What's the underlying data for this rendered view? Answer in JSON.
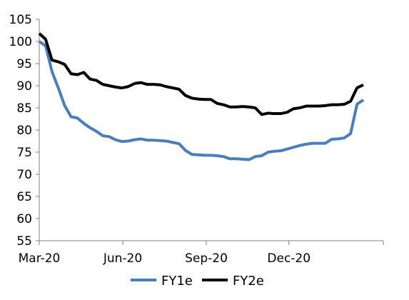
{
  "chart_data": {
    "type": "line",
    "title": "",
    "xlabel": "",
    "ylabel": "",
    "ylim": [
      55,
      105
    ],
    "yticks": [
      55,
      60,
      65,
      70,
      75,
      80,
      85,
      90,
      95,
      100,
      105
    ],
    "xlim": [
      "2020-03-01",
      "2021-03-15"
    ],
    "xticks": [
      {
        "label": "Mar-20",
        "date": "2020-03-01"
      },
      {
        "label": "Jun-20",
        "date": "2020-06-01"
      },
      {
        "label": "Sep-20",
        "date": "2020-09-01"
      },
      {
        "label": "Dec-20",
        "date": "2020-12-01"
      }
    ],
    "grid": false,
    "legend_position": "bottom",
    "series": [
      {
        "name": "FY1e",
        "color": "#4a7ebb",
        "points": [
          [
            "2020-03-01",
            100.0
          ],
          [
            "2020-03-08",
            99.0
          ],
          [
            "2020-03-15",
            93.2
          ],
          [
            "2020-03-22",
            89.5
          ],
          [
            "2020-03-29",
            85.5
          ],
          [
            "2020-04-05",
            83.0
          ],
          [
            "2020-04-12",
            82.7
          ],
          [
            "2020-04-19",
            81.5
          ],
          [
            "2020-04-26",
            80.5
          ],
          [
            "2020-05-03",
            79.7
          ],
          [
            "2020-05-10",
            78.7
          ],
          [
            "2020-05-17",
            78.5
          ],
          [
            "2020-05-24",
            77.8
          ],
          [
            "2020-05-31",
            77.4
          ],
          [
            "2020-06-07",
            77.5
          ],
          [
            "2020-06-14",
            77.8
          ],
          [
            "2020-06-21",
            78.0
          ],
          [
            "2020-06-28",
            77.7
          ],
          [
            "2020-07-05",
            77.7
          ],
          [
            "2020-07-12",
            77.6
          ],
          [
            "2020-07-19",
            77.5
          ],
          [
            "2020-07-26",
            77.2
          ],
          [
            "2020-08-02",
            76.9
          ],
          [
            "2020-08-09",
            75.4
          ],
          [
            "2020-08-16",
            74.5
          ],
          [
            "2020-08-23",
            74.4
          ],
          [
            "2020-08-30",
            74.3
          ],
          [
            "2020-09-06",
            74.3
          ],
          [
            "2020-09-13",
            74.2
          ],
          [
            "2020-09-20",
            74.0
          ],
          [
            "2020-09-27",
            73.5
          ],
          [
            "2020-10-04",
            73.5
          ],
          [
            "2020-10-11",
            73.4
          ],
          [
            "2020-10-18",
            73.3
          ],
          [
            "2020-10-25",
            74.0
          ],
          [
            "2020-11-01",
            74.2
          ],
          [
            "2020-11-08",
            75.0
          ],
          [
            "2020-11-15",
            75.2
          ],
          [
            "2020-11-22",
            75.3
          ],
          [
            "2020-11-29",
            75.7
          ],
          [
            "2020-12-06",
            76.1
          ],
          [
            "2020-12-13",
            76.5
          ],
          [
            "2020-12-20",
            76.8
          ],
          [
            "2020-12-27",
            77.0
          ],
          [
            "2021-01-03",
            77.0
          ],
          [
            "2021-01-10",
            77.0
          ],
          [
            "2021-01-17",
            77.9
          ],
          [
            "2021-01-24",
            78.0
          ],
          [
            "2021-01-31",
            78.2
          ],
          [
            "2021-02-07",
            79.2
          ],
          [
            "2021-02-14",
            85.8
          ],
          [
            "2021-02-21",
            86.8
          ]
        ]
      },
      {
        "name": "FY2e",
        "color": "#000000",
        "points": [
          [
            "2020-03-01",
            101.8
          ],
          [
            "2020-03-08",
            100.5
          ],
          [
            "2020-03-15",
            95.8
          ],
          [
            "2020-03-22",
            95.4
          ],
          [
            "2020-03-29",
            94.8
          ],
          [
            "2020-04-05",
            92.7
          ],
          [
            "2020-04-12",
            92.5
          ],
          [
            "2020-04-19",
            93.0
          ],
          [
            "2020-04-26",
            91.5
          ],
          [
            "2020-05-03",
            91.2
          ],
          [
            "2020-05-10",
            90.3
          ],
          [
            "2020-05-17",
            90.0
          ],
          [
            "2020-05-24",
            89.7
          ],
          [
            "2020-05-31",
            89.5
          ],
          [
            "2020-06-07",
            89.8
          ],
          [
            "2020-06-14",
            90.5
          ],
          [
            "2020-06-21",
            90.7
          ],
          [
            "2020-06-28",
            90.3
          ],
          [
            "2020-07-05",
            90.3
          ],
          [
            "2020-07-12",
            90.2
          ],
          [
            "2020-07-19",
            89.8
          ],
          [
            "2020-07-26",
            89.5
          ],
          [
            "2020-08-02",
            89.2
          ],
          [
            "2020-08-09",
            87.8
          ],
          [
            "2020-08-16",
            87.2
          ],
          [
            "2020-08-23",
            87.0
          ],
          [
            "2020-08-30",
            86.9
          ],
          [
            "2020-09-06",
            86.9
          ],
          [
            "2020-09-13",
            86.0
          ],
          [
            "2020-09-20",
            85.7
          ],
          [
            "2020-09-27",
            85.2
          ],
          [
            "2020-10-04",
            85.2
          ],
          [
            "2020-10-11",
            85.3
          ],
          [
            "2020-10-18",
            85.2
          ],
          [
            "2020-10-25",
            85.0
          ],
          [
            "2020-11-01",
            83.5
          ],
          [
            "2020-11-08",
            83.8
          ],
          [
            "2020-11-15",
            83.7
          ],
          [
            "2020-11-22",
            83.7
          ],
          [
            "2020-11-29",
            84.0
          ],
          [
            "2020-12-06",
            84.8
          ],
          [
            "2020-12-13",
            85.0
          ],
          [
            "2020-12-20",
            85.4
          ],
          [
            "2020-12-27",
            85.4
          ],
          [
            "2021-01-03",
            85.4
          ],
          [
            "2021-01-10",
            85.5
          ],
          [
            "2021-01-17",
            85.7
          ],
          [
            "2021-01-24",
            85.7
          ],
          [
            "2021-01-31",
            85.8
          ],
          [
            "2021-02-07",
            86.5
          ],
          [
            "2021-02-14",
            89.5
          ],
          [
            "2021-02-21",
            90.2
          ]
        ]
      }
    ]
  }
}
